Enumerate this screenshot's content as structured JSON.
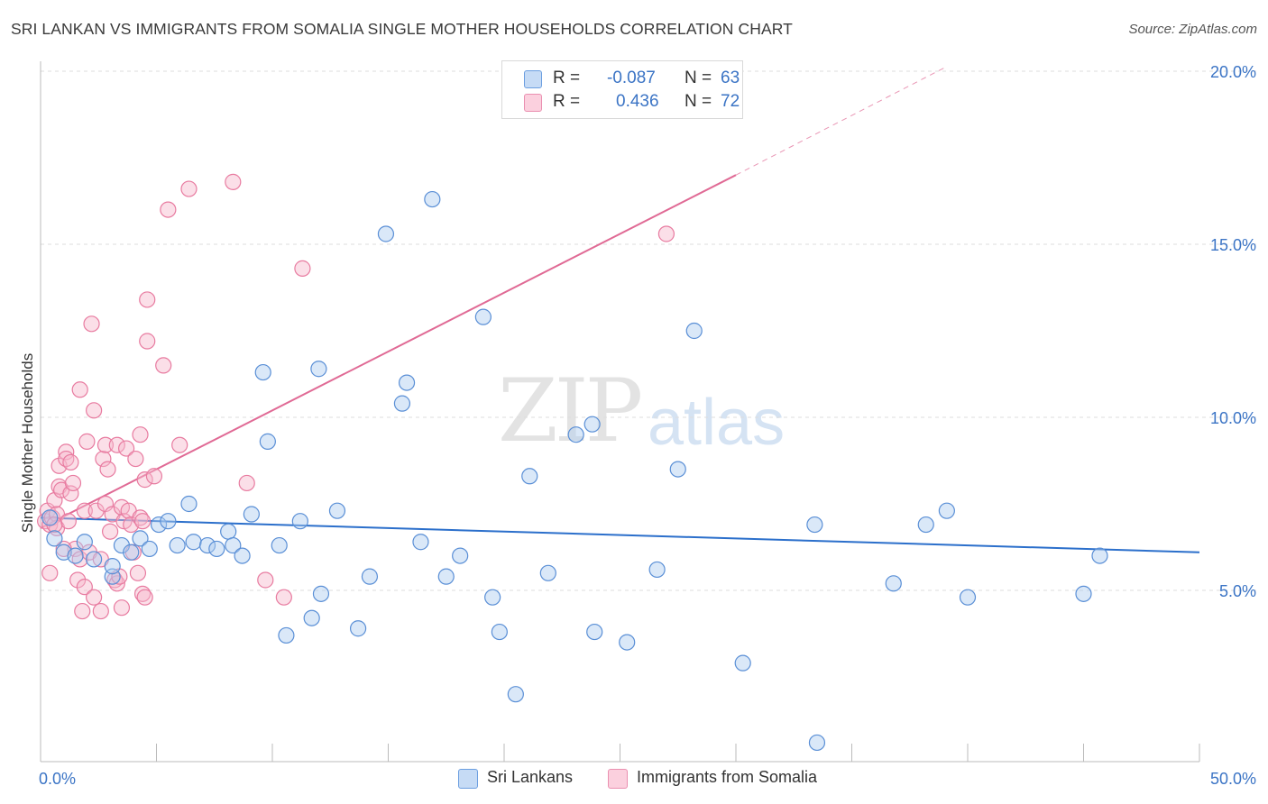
{
  "header": {
    "title": "SRI LANKAN VS IMMIGRANTS FROM SOMALIA SINGLE MOTHER HOUSEHOLDS CORRELATION CHART",
    "source": "Source: ZipAtlas.com"
  },
  "legend": {
    "rows": [
      {
        "r_label": "R =",
        "r_value": "-0.087",
        "n_label": "N =",
        "n_value": "63",
        "color": "#aecbf0"
      },
      {
        "r_label": "R =",
        "r_value": "0.436",
        "n_label": "N =",
        "n_value": "72",
        "color": "#f6b9cc"
      }
    ]
  },
  "bottom_legend": {
    "series1": "Sri Lankans",
    "series2": "Immigrants from Somalia"
  },
  "watermark": {
    "zip": "ZIP",
    "atlas": "atlas"
  },
  "colors": {
    "blue_fill": "#aecbf0",
    "blue_stroke": "#5a8fd6",
    "blue_line": "#2b6fcb",
    "pink_fill": "#f6b9cc",
    "pink_stroke": "#e87ba0",
    "pink_line": "#e06a95",
    "tick_label": "#3b74c5",
    "grid": "#dddddd"
  },
  "chart_data": {
    "type": "scatter",
    "title": "SRI LANKAN VS IMMIGRANTS FROM SOMALIA SINGLE MOTHER HOUSEHOLDS CORRELATION CHART",
    "xlabel": "",
    "ylabel": "Single Mother Households",
    "xlim": [
      0,
      50
    ],
    "ylim": [
      0,
      20.5
    ],
    "x_tick_labels": [
      "0.0%",
      "50.0%"
    ],
    "y_ticks": [
      5,
      10,
      15,
      20
    ],
    "y_tick_labels": [
      "5.0%",
      "10.0%",
      "15.0%",
      "20.0%"
    ],
    "grid": true,
    "legend_position": "top-center",
    "series": [
      {
        "name": "Sri Lankans",
        "r": -0.087,
        "n": 63,
        "trend": {
          "x": [
            0,
            50
          ],
          "y": [
            7.1,
            6.1
          ]
        },
        "points": [
          [
            0.6,
            6.5
          ],
          [
            0.4,
            7.1
          ],
          [
            1.0,
            6.1
          ],
          [
            1.5,
            6.0
          ],
          [
            1.9,
            6.4
          ],
          [
            2.3,
            5.9
          ],
          [
            3.1,
            5.4
          ],
          [
            3.1,
            5.7
          ],
          [
            3.5,
            6.3
          ],
          [
            3.9,
            6.1
          ],
          [
            4.3,
            6.5
          ],
          [
            4.7,
            6.2
          ],
          [
            5.1,
            6.9
          ],
          [
            5.5,
            7.0
          ],
          [
            5.9,
            6.3
          ],
          [
            6.4,
            7.5
          ],
          [
            6.6,
            6.4
          ],
          [
            7.2,
            6.3
          ],
          [
            7.6,
            6.2
          ],
          [
            8.1,
            6.7
          ],
          [
            8.3,
            6.3
          ],
          [
            8.7,
            6.0
          ],
          [
            9.1,
            7.2
          ],
          [
            9.6,
            11.3
          ],
          [
            9.8,
            9.3
          ],
          [
            10.3,
            6.3
          ],
          [
            10.6,
            3.7
          ],
          [
            11.2,
            7.0
          ],
          [
            11.7,
            4.2
          ],
          [
            12.1,
            4.9
          ],
          [
            12.0,
            11.4
          ],
          [
            12.8,
            7.3
          ],
          [
            13.7,
            3.9
          ],
          [
            14.2,
            5.4
          ],
          [
            14.9,
            15.3
          ],
          [
            15.6,
            10.4
          ],
          [
            15.8,
            11.0
          ],
          [
            16.4,
            6.4
          ],
          [
            16.9,
            16.3
          ],
          [
            17.5,
            5.4
          ],
          [
            18.1,
            6.0
          ],
          [
            19.1,
            12.9
          ],
          [
            19.5,
            4.8
          ],
          [
            19.8,
            3.8
          ],
          [
            20.5,
            2.0
          ],
          [
            21.1,
            8.3
          ],
          [
            21.9,
            5.5
          ],
          [
            23.1,
            9.5
          ],
          [
            23.8,
            9.8
          ],
          [
            23.9,
            3.8
          ],
          [
            25.3,
            3.5
          ],
          [
            26.6,
            5.6
          ],
          [
            27.5,
            8.5
          ],
          [
            28.2,
            12.5
          ],
          [
            30.3,
            2.9
          ],
          [
            33.4,
            6.9
          ],
          [
            33.5,
            0.6
          ],
          [
            36.8,
            5.2
          ],
          [
            38.2,
            6.9
          ],
          [
            39.1,
            7.3
          ],
          [
            40.0,
            4.8
          ],
          [
            45.0,
            4.9
          ],
          [
            45.7,
            6.0
          ]
        ]
      },
      {
        "name": "Immigrants from Somalia",
        "r": 0.436,
        "n": 72,
        "trend": {
          "x": [
            0,
            30
          ],
          "y": [
            6.8,
            17.0
          ]
        },
        "trend_extension": {
          "x": [
            30,
            39
          ],
          "y": [
            17.0,
            20.1
          ]
        },
        "points": [
          [
            0.2,
            7.0
          ],
          [
            0.3,
            7.3
          ],
          [
            0.4,
            6.9
          ],
          [
            0.5,
            7.1
          ],
          [
            0.6,
            7.6
          ],
          [
            0.7,
            7.2
          ],
          [
            0.7,
            6.8
          ],
          [
            0.4,
            5.5
          ],
          [
            0.8,
            8.0
          ],
          [
            0.8,
            8.6
          ],
          [
            0.9,
            7.9
          ],
          [
            1.1,
            9.0
          ],
          [
            1.1,
            8.8
          ],
          [
            1.2,
            7.0
          ],
          [
            1.3,
            7.8
          ],
          [
            1.3,
            8.7
          ],
          [
            1.4,
            8.1
          ],
          [
            1.5,
            6.2
          ],
          [
            1.6,
            5.3
          ],
          [
            1.7,
            5.9
          ],
          [
            1.7,
            10.8
          ],
          [
            1.8,
            4.4
          ],
          [
            1.9,
            5.1
          ],
          [
            1.9,
            7.3
          ],
          [
            2.0,
            9.3
          ],
          [
            2.1,
            6.1
          ],
          [
            2.2,
            12.7
          ],
          [
            2.3,
            10.2
          ],
          [
            2.3,
            4.8
          ],
          [
            2.4,
            7.3
          ],
          [
            2.6,
            5.9
          ],
          [
            2.6,
            4.4
          ],
          [
            2.7,
            8.8
          ],
          [
            2.8,
            7.5
          ],
          [
            2.8,
            9.2
          ],
          [
            2.9,
            8.5
          ],
          [
            3.0,
            6.7
          ],
          [
            3.1,
            7.2
          ],
          [
            3.2,
            5.3
          ],
          [
            3.3,
            5.2
          ],
          [
            3.3,
            9.2
          ],
          [
            3.4,
            5.4
          ],
          [
            3.5,
            4.5
          ],
          [
            3.5,
            7.4
          ],
          [
            3.6,
            7.0
          ],
          [
            3.7,
            9.1
          ],
          [
            3.8,
            7.3
          ],
          [
            3.9,
            6.9
          ],
          [
            4.0,
            6.1
          ],
          [
            4.1,
            8.8
          ],
          [
            4.2,
            5.5
          ],
          [
            4.3,
            7.1
          ],
          [
            4.3,
            9.5
          ],
          [
            4.4,
            7.0
          ],
          [
            4.4,
            4.9
          ],
          [
            4.5,
            4.8
          ],
          [
            4.5,
            8.2
          ],
          [
            4.6,
            13.4
          ],
          [
            4.6,
            12.2
          ],
          [
            4.9,
            8.3
          ],
          [
            5.3,
            11.5
          ],
          [
            5.5,
            16.0
          ],
          [
            6.0,
            9.2
          ],
          [
            6.4,
            16.6
          ],
          [
            8.3,
            16.8
          ],
          [
            8.9,
            8.1
          ],
          [
            9.7,
            5.3
          ],
          [
            10.5,
            4.8
          ],
          [
            11.3,
            14.3
          ],
          [
            27.0,
            15.3
          ],
          [
            0.6,
            6.9
          ],
          [
            1.0,
            6.2
          ]
        ]
      }
    ]
  }
}
